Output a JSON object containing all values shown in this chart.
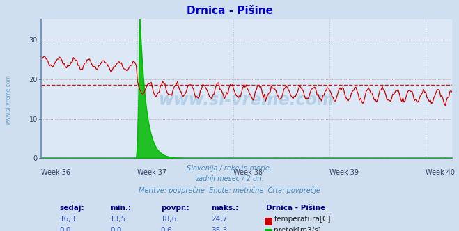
{
  "title": "Drnica - Pišine",
  "title_color": "#0000cc",
  "background_color": "#d0dff0",
  "plot_bg_color": "#dce8f5",
  "grid_h_color": "#cc8888",
  "grid_v_color": "#aabbdd",
  "xlabel_weeks": [
    "Week 36",
    "Week 37",
    "Week 38",
    "Week 39",
    "Week 40"
  ],
  "ylim": [
    0,
    35
  ],
  "yticks": [
    0,
    10,
    20,
    30
  ],
  "avg_temp": 18.6,
  "watermark": "www.si-vreme.com",
  "subtitle1": "Slovenija / reke in morje.",
  "subtitle2": "zadnji mesec / 2 uri.",
  "subtitle3": "Meritve: povprečne  Enote: metrične  Črta: povprečje",
  "subtitle_color": "#4488bb",
  "temp_color": "#cc0000",
  "flow_color": "#00bb00",
  "avg_line_color": "#cc0000",
  "n_points": 360,
  "week36_idx": 0,
  "week37_idx": 84,
  "week38_idx": 168,
  "week39_idx": 252,
  "week40_idx": 336,
  "table_headers": [
    "sedaj:",
    "min.:",
    "povpr.:",
    "maks.:"
  ],
  "temp_row": [
    "16,3",
    "13,5",
    "18,6",
    "24,7"
  ],
  "flow_row": [
    "0,0",
    "0,0",
    "0,6",
    "35,3"
  ],
  "legend_title": "Drnica - Pišine",
  "legend_temp": "temperatura[C]",
  "legend_flow": "pretok[m3/s]",
  "header_color": "#000080",
  "val_color": "#3355cc",
  "left_label": "www.si-vreme.com",
  "spine_color": "#6688bb",
  "axis_arrow_color": "#cc0000"
}
